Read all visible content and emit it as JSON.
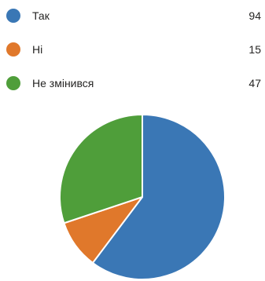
{
  "chart_data": {
    "type": "pie",
    "slices": [
      {
        "label": "Так",
        "value": 94,
        "color": "#3a77b5"
      },
      {
        "label": "Ні",
        "value": 15,
        "color": "#e0782b"
      },
      {
        "label": "Не змінився",
        "value": 47,
        "color": "#4f9e3a"
      }
    ]
  }
}
